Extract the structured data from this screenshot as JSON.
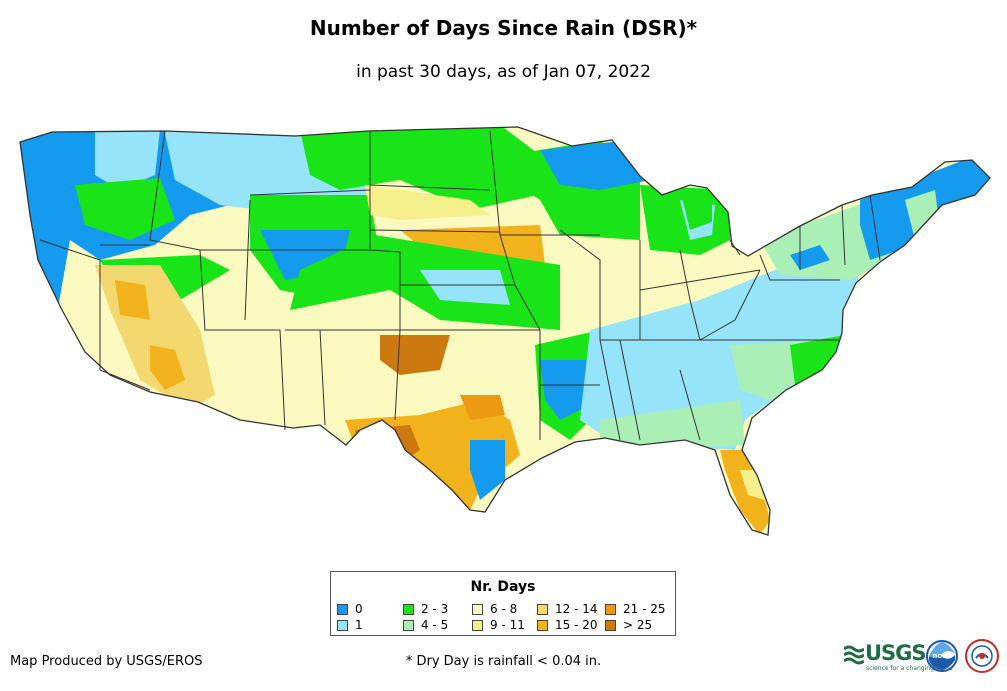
{
  "title": "Number of Days Since Rain (DSR)*",
  "subtitle": "in past 30 days, as of Jan 07, 2022",
  "legend": {
    "title": "Nr. Days",
    "items": [
      {
        "label": "0",
        "color": "#149bef"
      },
      {
        "label": "1",
        "color": "#96e4f9"
      },
      {
        "label": "2 - 3",
        "color": "#18e418"
      },
      {
        "label": "4 - 5",
        "color": "#aaf0b6"
      },
      {
        "label": "6 - 8",
        "color": "#fafac0"
      },
      {
        "label": "9 - 11",
        "color": "#f6f08c"
      },
      {
        "label": "12 - 14",
        "color": "#f3d870"
      },
      {
        "label": "15 - 20",
        "color": "#f2b21c"
      },
      {
        "label": "21 - 25",
        "color": "#eb9a12"
      },
      {
        "label": "> 25",
        "color": "#cc7a10"
      }
    ]
  },
  "credit": "Map Produced by USGS/EROS",
  "footnote": "* Dry Day is rainfall < 0.04 in.",
  "logos": {
    "usgs_text": "USGS",
    "usgs_tagline": "science for a changing world",
    "noaa_text": "noaa"
  },
  "colors": {
    "state_border": "#333333",
    "usgs_green": "#1f6b44",
    "noaa_blue": "#1a5aa8"
  }
}
